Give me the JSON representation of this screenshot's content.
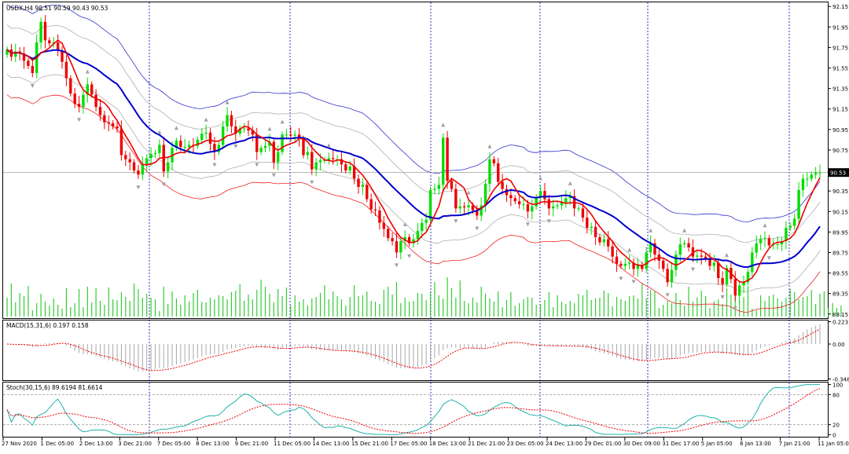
{
  "chart_data": [
    {
      "type": "candlestick",
      "panel": "main",
      "header": "USDX,H4  90.51 90.59 90.43 90.53",
      "symbol": "USDX",
      "timeframe": "H4",
      "last_ohlc": {
        "open": 90.51,
        "high": 90.59,
        "low": 90.43,
        "close": 90.53
      },
      "current_price_label": "90.53",
      "current_price": 90.53,
      "ylim": [
        89.11,
        92.19
      ],
      "y_ticks": [
        "92.15",
        "91.95",
        "91.75",
        "91.55",
        "91.35",
        "91.15",
        "90.95",
        "90.75",
        "90.55",
        "90.35",
        "90.15",
        "89.95",
        "89.75",
        "89.55",
        "89.35",
        "89.15"
      ],
      "x_ticks": [
        "27 Nov 2020",
        "1 Dec 05:00",
        "2 Dec 13:00",
        "3 Dec 21:00",
        "7 Dec 05:00",
        "8 Dec 13:00",
        "9 Dec 21:00",
        "11 Dec 05:00",
        "14 Dec 13:00",
        "15 Dec 21:00",
        "17 Dec 05:00",
        "18 Dec 13:00",
        "21 Dec 21:00",
        "23 Dec 05:00",
        "24 Dec 13:00",
        "29 Dec 01:00",
        "30 Dec 09:00",
        "31 Dec 17:00",
        "5 Jan 05:00",
        "6 Jan 13:00",
        "7 Jan 21:00",
        "11 Jan 05:00"
      ],
      "colors": {
        "bull": "#00dd00",
        "bear": "#ee0000",
        "ma_fast": "#ee0000",
        "ma_mid": "#0000cc",
        "band_outer_upper": "#3333cc",
        "band_outer_lower": "#ee2222",
        "band_inner": "#b0b0b0",
        "fractal": "#a0a0a0",
        "volume": "#33cc33",
        "price_line": "#a0a0a0"
      },
      "closes": [
        91.73,
        91.66,
        91.71,
        91.69,
        91.62,
        91.57,
        91.5,
        91.8,
        92.0,
        91.82,
        91.79,
        91.8,
        91.72,
        91.61,
        91.45,
        91.3,
        91.2,
        91.17,
        91.29,
        91.39,
        91.29,
        91.17,
        91.09,
        91.02,
        91.01,
        90.98,
        90.96,
        90.7,
        90.66,
        90.63,
        90.55,
        90.51,
        90.61,
        90.67,
        90.71,
        90.72,
        90.8,
        90.54,
        90.63,
        90.77,
        90.84,
        90.78,
        90.78,
        90.8,
        90.79,
        90.85,
        90.91,
        90.92,
        90.81,
        90.73,
        90.8,
        90.98,
        91.09,
        90.98,
        90.91,
        90.96,
        90.96,
        90.94,
        90.9,
        90.73,
        90.77,
        90.79,
        90.83,
        90.63,
        90.73,
        90.9,
        90.9,
        90.89,
        90.9,
        90.86,
        90.7,
        90.73,
        90.56,
        90.63,
        90.65,
        90.65,
        90.67,
        90.66,
        90.66,
        90.61,
        90.55,
        90.59,
        90.47,
        90.39,
        90.41,
        90.27,
        90.17,
        90.16,
        90.04,
        89.98,
        89.89,
        89.86,
        89.75,
        89.86,
        89.9,
        89.84,
        89.88,
        89.96,
        90.04,
        90.07,
        90.36,
        90.37,
        90.41,
        90.87,
        90.45,
        90.37,
        90.18,
        90.2,
        90.19,
        90.21,
        90.16,
        90.11,
        90.21,
        90.42,
        90.66,
        90.62,
        90.44,
        90.37,
        90.31,
        90.28,
        90.25,
        90.22,
        90.22,
        90.15,
        90.2,
        90.29,
        90.35,
        90.27,
        90.18,
        90.2,
        90.21,
        90.24,
        90.28,
        90.3,
        90.18,
        90.18,
        90.09,
        89.99,
        90.0,
        89.9,
        89.85,
        89.88,
        89.81,
        89.71,
        89.64,
        89.62,
        89.64,
        89.65,
        89.59,
        89.63,
        89.59,
        89.75,
        89.84,
        89.73,
        89.67,
        89.59,
        89.46,
        89.58,
        89.73,
        89.83,
        89.84,
        89.8,
        89.71,
        89.72,
        89.71,
        89.69,
        89.62,
        89.65,
        89.5,
        89.44,
        89.6,
        89.49,
        89.33,
        89.43,
        89.46,
        89.56,
        89.75,
        89.84,
        89.88,
        89.89,
        89.82,
        89.83,
        89.83,
        89.86,
        89.99,
        90.01,
        90.08,
        90.36,
        90.47,
        90.47,
        90.51,
        90.53,
        90.53
      ],
      "volumes": [
        24,
        42,
        18,
        30,
        26,
        39,
        8,
        17,
        29,
        19,
        14,
        23,
        15,
        10,
        36,
        12,
        17,
        35,
        12,
        38,
        18,
        36,
        20,
        15,
        37,
        22,
        21,
        31,
        25,
        20,
        42,
        35,
        24,
        29,
        24,
        22,
        7,
        38,
        16,
        32,
        23,
        15,
        27,
        19,
        30,
        34,
        19,
        18,
        24,
        22,
        27,
        26,
        22,
        31,
        33,
        41,
        20,
        28,
        22,
        34,
        47,
        38,
        29,
        18,
        35,
        26,
        37,
        14,
        27,
        19,
        22,
        14,
        23,
        25,
        30,
        40,
        22,
        32,
        26,
        22,
        14,
        25,
        40,
        26,
        27,
        32,
        20,
        19,
        16,
        34,
        38,
        28,
        44,
        17,
        24,
        19,
        20,
        30,
        29,
        21,
        31,
        44,
        27,
        23,
        50,
        36,
        24,
        46,
        20,
        17,
        24,
        18,
        38,
        29,
        23,
        19,
        32,
        12,
        21,
        31,
        14,
        17,
        22,
        25,
        24,
        15,
        16,
        21,
        31,
        12,
        27,
        19,
        16,
        20,
        17,
        29,
        27,
        34,
        21,
        23,
        24,
        33,
        30,
        13,
        25,
        22,
        20,
        26,
        27,
        23,
        43,
        23,
        34,
        32,
        11,
        15,
        20,
        17,
        30,
        21,
        14,
        38,
        19,
        24,
        33,
        26,
        11,
        19,
        22,
        16,
        36,
        28,
        27,
        20,
        25,
        39,
        10,
        8,
        27,
        20,
        26,
        28,
        23,
        19,
        24,
        35,
        31,
        22,
        25,
        26,
        34,
        16,
        29,
        32,
        11,
        17,
        11,
        14
      ]
    },
    {
      "type": "bar-line",
      "panel": "macd",
      "header": "MACD(15,31,6) 0.197 0.158",
      "macd": 0.197,
      "signal": 0.158,
      "ylim": [
        -0.36,
        0.235
      ],
      "y_ticks": [
        "0.223",
        "0.00",
        "-0.348"
      ],
      "colors": {
        "histogram": "#a8a8a8",
        "signal": "#ee0000"
      }
    },
    {
      "type": "line",
      "panel": "stochastic",
      "header": "Stoch(30,15,6) 89.6194 81.6614",
      "main": 89.6194,
      "signal": 81.6614,
      "ylim": [
        -4,
        104
      ],
      "y_ticks": [
        "100",
        "80",
        "20",
        "0"
      ],
      "colors": {
        "main": "#20b2aa",
        "signal": "#ee0000",
        "levels": "#a0a0a0"
      }
    }
  ]
}
